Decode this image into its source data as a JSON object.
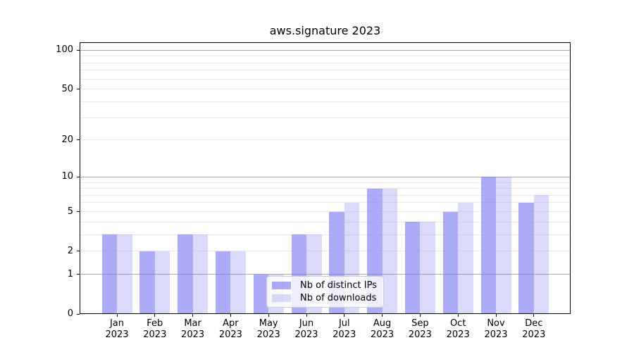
{
  "chart_data": {
    "type": "bar",
    "title": "aws.signature 2023",
    "categories": [
      "Jan",
      "Feb",
      "Mar",
      "Apr",
      "May",
      "Jun",
      "Jul",
      "Aug",
      "Sep",
      "Oct",
      "Nov",
      "Dec"
    ],
    "year": "2023",
    "series": [
      {
        "name": "Nb of distinct IPs",
        "color": "rgba(120,120,240,0.62)",
        "values": [
          3,
          2,
          3,
          2,
          1,
          3,
          5,
          8,
          4,
          5,
          10,
          6
        ]
      },
      {
        "name": "Nb of downloads",
        "color": "rgba(120,120,240,0.27)",
        "values": [
          3,
          2,
          3,
          2,
          1,
          3,
          6,
          8,
          4,
          6,
          10,
          7
        ]
      }
    ],
    "xlabel": "",
    "ylabel": "",
    "yscale": "log1p",
    "ylim": [
      0,
      115
    ],
    "yticks": [
      0,
      1,
      2,
      5,
      10,
      20,
      50,
      100
    ],
    "major_gridlines": [
      1,
      10,
      100
    ],
    "minor_gridlines": [
      2,
      3,
      4,
      5,
      6,
      7,
      8,
      9,
      20,
      30,
      40,
      50,
      60,
      70,
      80,
      90
    ],
    "grid": true,
    "legend_position": "lower center inside"
  },
  "colors": {
    "bar_distinct_ips": "rgba(120,120,240,0.62)",
    "bar_downloads": "rgba(120,120,240,0.27)",
    "gridline_major": "#a9a9a9",
    "gridline_minor": "#e9e9e9",
    "axis": "#000000",
    "legend_border": "#cccccc"
  }
}
